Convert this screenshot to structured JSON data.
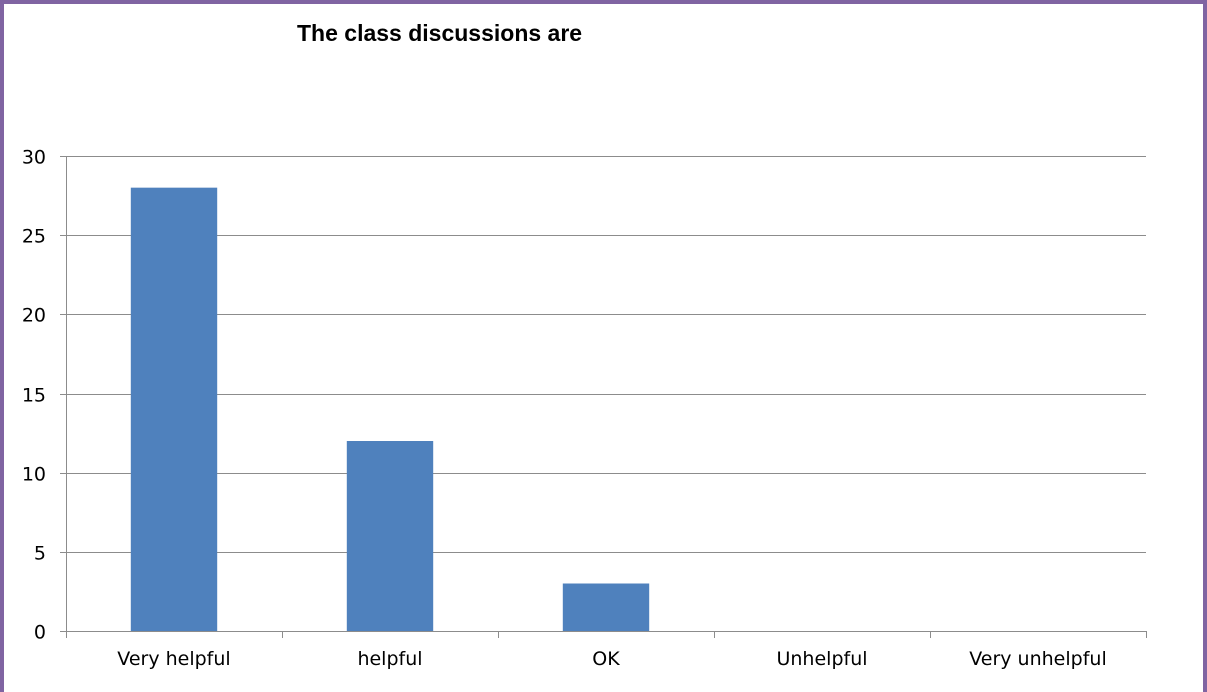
{
  "chart_data": {
    "type": "bar",
    "title": "The class discussions are",
    "categories": [
      "Very helpful",
      "helpful",
      "OK",
      "Unhelpful",
      "Very unhelpful"
    ],
    "values": [
      28,
      12,
      3,
      0,
      0
    ],
    "xlabel": "",
    "ylabel": "",
    "ylim": [
      0,
      30
    ],
    "yticks": [
      "0",
      "5",
      "10",
      "15",
      "20",
      "25",
      "30"
    ],
    "grid": true,
    "legend": "none",
    "bar_color": "#4f81bd",
    "grid_color": "#8c8c8c",
    "frame_color": "#8064a2"
  }
}
